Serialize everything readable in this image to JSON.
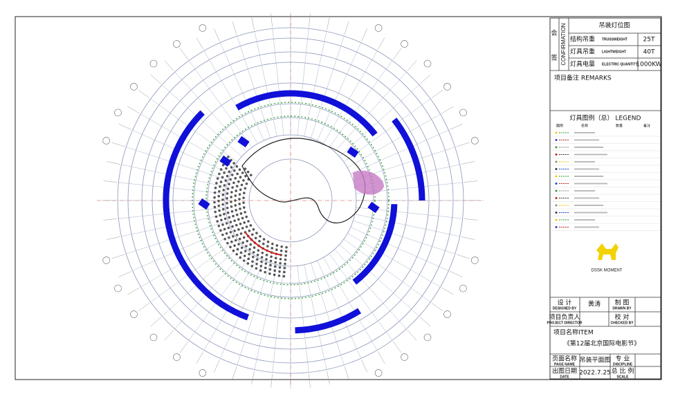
{
  "title_block": {
    "confirmation": {
      "label_cn_1": "会",
      "label_cn_2": "签",
      "label_en": "CONFIRMATION"
    },
    "drawing_title": "吊装灯位图",
    "rows": [
      {
        "cn": "结构吊重",
        "en": "TRUSSWEIGHT",
        "value": "25T"
      },
      {
        "cn": "灯具吊重",
        "en": "LIGHTWEIGHT",
        "value": "40T"
      },
      {
        "cn": "灯具电量",
        "en": "ELECTRIC QUANTITY",
        "value": "1000KW"
      }
    ],
    "remarks": "项目备注 REMARKS",
    "legend": {
      "title": "灯具图例（总） LEGEND",
      "headers": [
        "图例",
        "名称",
        "数量",
        "备注"
      ]
    },
    "logo": "DSSK MOMENT",
    "designed_by": {
      "cn": "设 计",
      "en": "DESIGNED BY",
      "name": "黄涛"
    },
    "drawn_by": {
      "cn": "制 图",
      "en": "DRAWN BY"
    },
    "project_director": {
      "cn": "项目负责人",
      "en": "PROJECT DIRECTOR"
    },
    "checked_by": {
      "cn": "校 对",
      "en": "CHECKED BY"
    },
    "item": {
      "label": "项目名称ITEM",
      "value": "《第12届北京国际电影节》"
    },
    "page_name": {
      "cn": "页面名称",
      "en": "PAGE NAME",
      "value": "吊装平面图"
    },
    "discipline": {
      "cn": "专 业",
      "en": "DISCIPLINE"
    },
    "date": {
      "cn": "出图日期",
      "en": "DATE",
      "value": "2022.7.25"
    },
    "scale": {
      "cn": "总 比 例",
      "en": "SCALE"
    }
  }
}
